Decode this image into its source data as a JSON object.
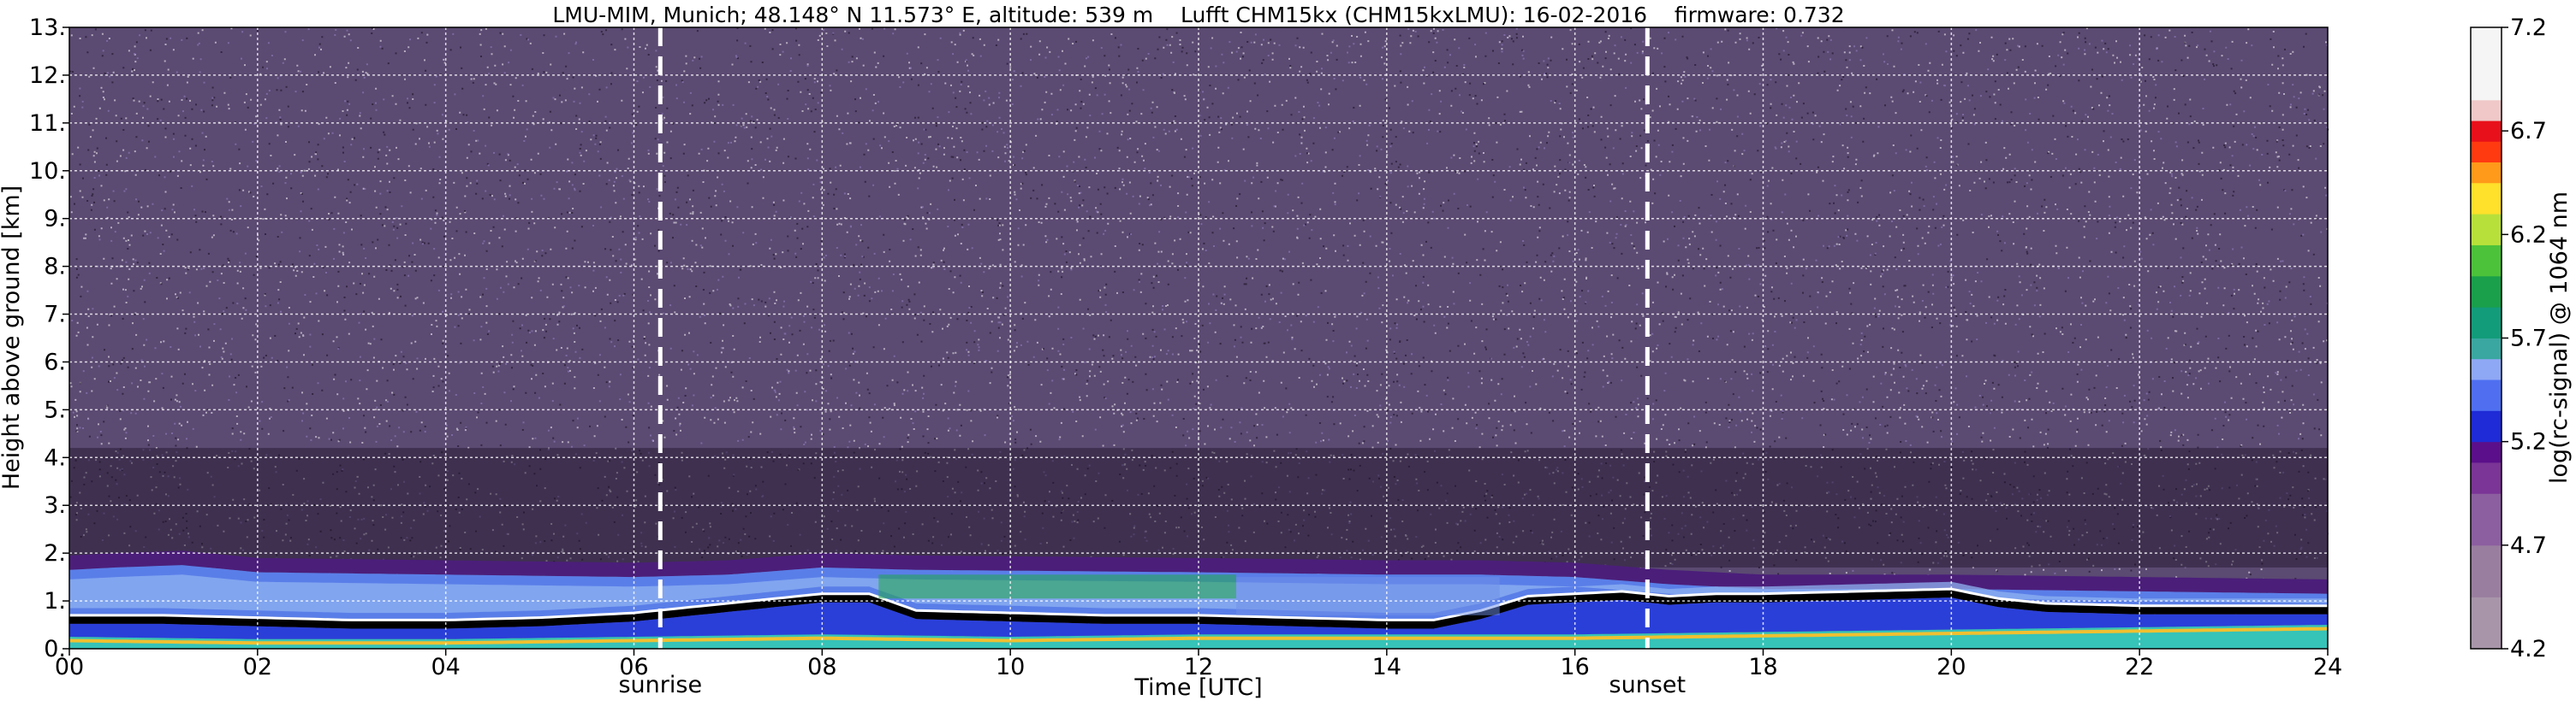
{
  "chart_data": {
    "type": "heatmap",
    "title": "LMU-MIM, Munich; 48.148° N 11.573° E, altitude: 539 m    Lufft CHM15kx (CHM15kxLMU): 16-02-2016    firmware: 0.732",
    "xlabel": "Time [UTC]",
    "ylabel": "Height above ground [km]",
    "colorbar_label": "log(rc-signal) @ 1064 nm",
    "x_ticks": [
      "00",
      "02",
      "04",
      "06",
      "08",
      "10",
      "12",
      "14",
      "16",
      "18",
      "20",
      "22",
      "24"
    ],
    "y_ticks": [
      "0.",
      "1.",
      "2.",
      "3.",
      "4.",
      "5.",
      "6.",
      "7.",
      "8.",
      "9.",
      "10.",
      "11.",
      "12.",
      "13."
    ],
    "colorbar_ticks": [
      "4.2",
      "4.7",
      "5.2",
      "5.7",
      "6.2",
      "6.7",
      "7.2"
    ],
    "xlim": [
      0,
      24
    ],
    "ylim": [
      0,
      13
    ],
    "clim": [
      4.2,
      7.2
    ],
    "grid": true,
    "events": [
      {
        "label": "sunrise",
        "time_h": 6.28
      },
      {
        "label": "sunset",
        "time_h": 16.77
      }
    ],
    "layers": [
      {
        "name": "boundary layer top",
        "points": [
          [
            0,
            1.7
          ],
          [
            0.5,
            1.75
          ],
          [
            1.2,
            1.8
          ],
          [
            2,
            1.65
          ],
          [
            4,
            1.6
          ],
          [
            6,
            1.55
          ],
          [
            7,
            1.6
          ],
          [
            8,
            1.75
          ],
          [
            9,
            1.7
          ],
          [
            12,
            1.65
          ],
          [
            14,
            1.6
          ],
          [
            15,
            1.6
          ],
          [
            16,
            1.55
          ],
          [
            17,
            1.4
          ],
          [
            18,
            1.3
          ],
          [
            20,
            1.3
          ],
          [
            22,
            1.25
          ],
          [
            24,
            1.2
          ]
        ]
      },
      {
        "name": "aerosol layer (black)",
        "points": [
          [
            0,
            0.6
          ],
          [
            1,
            0.6
          ],
          [
            2,
            0.55
          ],
          [
            3,
            0.5
          ],
          [
            4,
            0.5
          ],
          [
            5,
            0.55
          ],
          [
            6,
            0.65
          ],
          [
            6.5,
            0.75
          ],
          [
            7,
            0.85
          ],
          [
            7.5,
            0.95
          ],
          [
            8,
            1.05
          ],
          [
            8.5,
            1.05
          ],
          [
            9,
            0.7
          ],
          [
            10,
            0.65
          ],
          [
            11,
            0.6
          ],
          [
            12,
            0.6
          ],
          [
            13,
            0.55
          ],
          [
            14,
            0.5
          ],
          [
            14.5,
            0.5
          ],
          [
            15,
            0.7
          ],
          [
            15.5,
            1.0
          ],
          [
            16,
            1.05
          ],
          [
            16.5,
            1.1
          ],
          [
            17,
            1.0
          ],
          [
            17.5,
            1.05
          ],
          [
            18,
            1.05
          ],
          [
            19,
            1.1
          ],
          [
            20,
            1.15
          ],
          [
            20.5,
            0.95
          ],
          [
            21,
            0.85
          ],
          [
            22,
            0.8
          ],
          [
            23,
            0.8
          ],
          [
            24,
            0.8
          ]
        ]
      },
      {
        "name": "near-surface layer",
        "points": [
          [
            0,
            0.25
          ],
          [
            2,
            0.2
          ],
          [
            4,
            0.2
          ],
          [
            6,
            0.25
          ],
          [
            8,
            0.3
          ],
          [
            10,
            0.25
          ],
          [
            12,
            0.3
          ],
          [
            14,
            0.3
          ],
          [
            16,
            0.3
          ],
          [
            18,
            0.35
          ],
          [
            20,
            0.4
          ],
          [
            22,
            0.45
          ],
          [
            24,
            0.5
          ]
        ]
      }
    ]
  }
}
